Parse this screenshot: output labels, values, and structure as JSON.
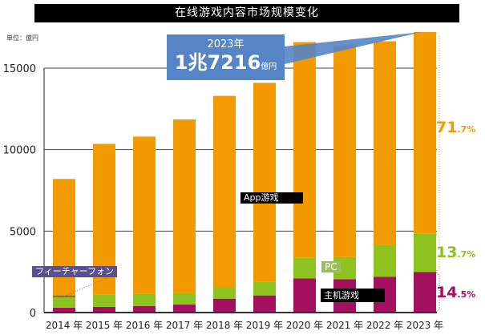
{
  "chart_data": {
    "type": "bar",
    "stacked": true,
    "title": "在线游戏内容市场规模变化",
    "unit_label": "単位：億円",
    "categories": [
      "2014 年",
      "2015 年",
      "2016 年",
      "2017 年",
      "2018 年",
      "2019 年",
      "2020 年",
      "2021 年",
      "2022 年",
      "2023 年"
    ],
    "series": [
      {
        "name": "主机游戏",
        "color": "#a3105f",
        "values": [
          300,
          350,
          400,
          500,
          850,
          1050,
          2100,
          2050,
          2200,
          2496
        ]
      },
      {
        "name": "PC",
        "color": "#8dc21f",
        "values": [
          650,
          750,
          750,
          700,
          700,
          850,
          1250,
          1350,
          1950,
          2359
        ]
      },
      {
        "name": "フィーチャーフォン",
        "color": "#6b6a2a",
        "values": [
          100,
          0,
          0,
          0,
          0,
          0,
          0,
          0,
          0,
          0
        ]
      },
      {
        "name": "App游戏",
        "color": "#f29a00",
        "values": [
          7150,
          9250,
          9650,
          10650,
          11750,
          12200,
          13250,
          13000,
          12500,
          12361
        ]
      }
    ],
    "yticks": [
      0,
      5000,
      10000,
      15000
    ],
    "ylim": [
      0,
      17500
    ],
    "grid": true,
    "callout": {
      "year": "2023年",
      "amount": "1兆7216",
      "unit": "億円"
    },
    "shares": [
      {
        "int": "71",
        "dec": ".7%",
        "color": "#f29a00"
      },
      {
        "int": "13",
        "dec": ".7%",
        "color": "#8dc21f"
      },
      {
        "int": "14",
        "dec": ".5%",
        "color": "#a3105f"
      }
    ]
  }
}
